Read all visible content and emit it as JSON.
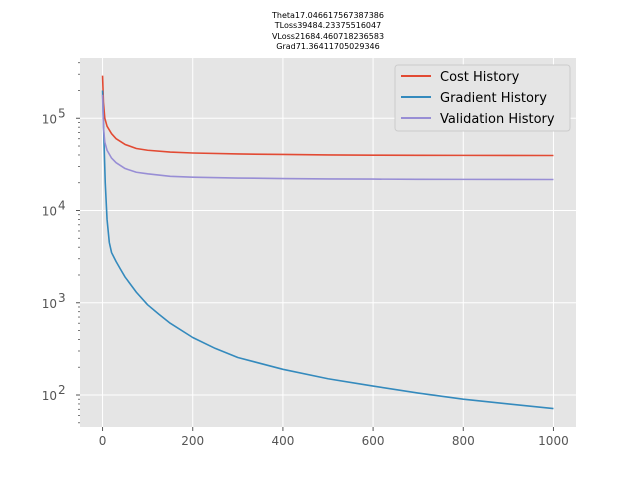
{
  "chart_data": {
    "type": "line",
    "title_lines": [
      "Theta17.046617567387386",
      "TLoss39484.23375516047",
      "VLoss21684.460718236583",
      "Grad71.36411705029346"
    ],
    "xlabel": "",
    "ylabel": "",
    "x_scale": "linear",
    "y_scale": "log",
    "xlim": [
      -50,
      1050
    ],
    "ylim": [
      45,
      450000
    ],
    "x_ticks": [
      0,
      200,
      400,
      600,
      800,
      1000
    ],
    "x_tick_labels": [
      "0",
      "200",
      "400",
      "600",
      "800",
      "1000"
    ],
    "y_ticks": [
      100,
      1000,
      10000,
      100000
    ],
    "y_tick_labels": [
      "10",
      "10",
      "10",
      "10"
    ],
    "y_tick_exponents": [
      "2",
      "3",
      "4",
      "5"
    ],
    "grid": true,
    "background": "#e5e5e5",
    "legend_position": "top-right",
    "series": [
      {
        "name": "Cost History",
        "color": "#e24a33",
        "x": [
          0,
          2,
          5,
          10,
          20,
          30,
          50,
          75,
          100,
          150,
          200,
          300,
          400,
          500,
          600,
          700,
          800,
          900,
          1000
        ],
        "y": [
          290000,
          150000,
          100000,
          82000,
          68000,
          60000,
          52000,
          47000,
          45000,
          43000,
          42000,
          41000,
          40500,
          40000,
          39800,
          39700,
          39600,
          39500,
          39484
        ]
      },
      {
        "name": "Gradient History",
        "color": "#348abd",
        "x": [
          0,
          3,
          6,
          10,
          15,
          20,
          30,
          40,
          50,
          75,
          100,
          125,
          150,
          200,
          250,
          300,
          400,
          500,
          600,
          700,
          800,
          900,
          1000
        ],
        "y": [
          200000,
          60000,
          20000,
          8000,
          4500,
          3500,
          2800,
          2300,
          1900,
          1300,
          950,
          750,
          600,
          420,
          320,
          255,
          190,
          150,
          125,
          105,
          90,
          80,
          71.36
        ]
      },
      {
        "name": "Validation History",
        "color": "#988ed5",
        "x": [
          0,
          2,
          5,
          10,
          20,
          30,
          50,
          75,
          100,
          150,
          200,
          300,
          400,
          500,
          600,
          700,
          800,
          900,
          1000
        ],
        "y": [
          180000,
          80000,
          55000,
          45000,
          37000,
          33000,
          28500,
          26000,
          25000,
          23500,
          23000,
          22500,
          22200,
          22000,
          21900,
          21800,
          21750,
          21700,
          21684
        ]
      }
    ]
  }
}
